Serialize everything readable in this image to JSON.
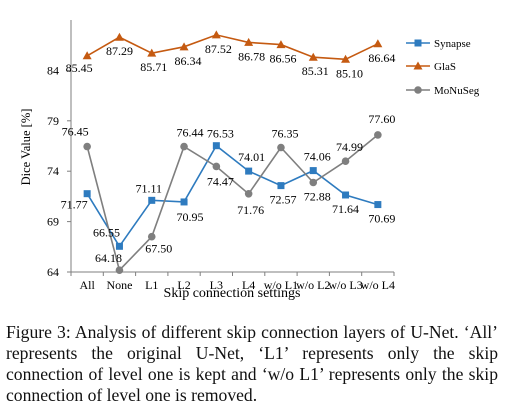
{
  "chart_data": {
    "type": "line",
    "xlabel": "Skip connection settings",
    "ylabel": "Dice Value [%]",
    "ylim": [
      64,
      89
    ],
    "y_ticks": [
      64,
      69,
      74,
      79,
      84
    ],
    "grid": false,
    "legend_position": "top-right",
    "categories": [
      "All",
      "None",
      "L1",
      "L2",
      "L3",
      "L4",
      "w/o L1",
      "w/o L2",
      "w/o L3",
      "w/o L4"
    ],
    "series": [
      {
        "name": "Synapse",
        "color": "#2e7bbf",
        "marker": "square",
        "values": [
          71.77,
          66.55,
          71.11,
          70.95,
          76.53,
          74.01,
          72.57,
          74.06,
          71.64,
          70.69
        ],
        "labels": [
          "71.77",
          "66.55",
          "71.11",
          "70.95",
          "76.53",
          "74.01",
          "72.57",
          "74.06",
          "71.64",
          "70.69"
        ]
      },
      {
        "name": "GlaS",
        "color": "#c55a11",
        "marker": "triangle",
        "values": [
          85.45,
          87.29,
          85.71,
          86.34,
          87.52,
          86.78,
          86.56,
          85.31,
          85.1,
          86.64
        ],
        "labels": [
          "85.45",
          "87.29",
          "85.71",
          "86.34",
          "87.52",
          "86.78",
          "86.56",
          "85.31",
          "85.10",
          "86.64"
        ]
      },
      {
        "name": "MoNuSeg",
        "color": "#7f7f7f",
        "marker": "circle",
        "values": [
          76.45,
          64.18,
          67.5,
          76.44,
          74.47,
          71.76,
          76.35,
          72.88,
          74.99,
          77.6
        ],
        "labels": [
          "76.45",
          "64.18",
          "67.50",
          "76.44",
          "74.47",
          "71.76",
          "76.35",
          "72.88",
          "74.99",
          "77.60"
        ]
      }
    ]
  },
  "caption": "Figure 3: Analysis of different skip connection layers of U-Net. ‘All’ represents the original U-Net, ‘L1’ represents only the skip connection of level one is kept and ‘w/o L1’ represents only the skip connection of level one is removed."
}
